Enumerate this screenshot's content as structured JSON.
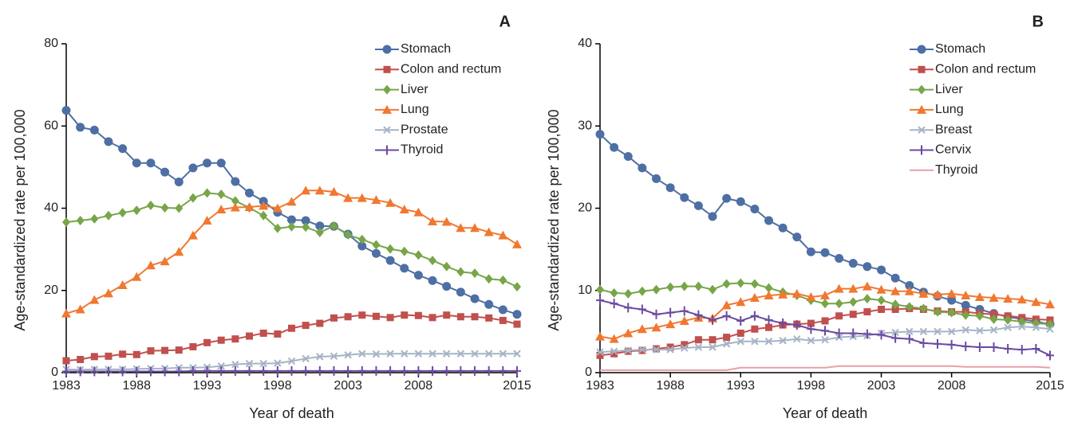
{
  "chart_data": [
    {
      "type": "line",
      "title": "A",
      "x_label": "Year of death",
      "y_label": "Age-standardized rate per 100,000",
      "x": [
        1983,
        1984,
        1985,
        1986,
        1987,
        1988,
        1989,
        1990,
        1991,
        1992,
        1993,
        1994,
        1995,
        1996,
        1997,
        1998,
        1999,
        2000,
        2001,
        2002,
        2003,
        2004,
        2005,
        2006,
        2007,
        2008,
        2009,
        2010,
        2011,
        2012,
        2013,
        2014,
        2015
      ],
      "xlim": [
        1983,
        2015
      ],
      "xticks": [
        1983,
        1988,
        1993,
        1998,
        2003,
        2008,
        2015
      ],
      "ylim": [
        0,
        80
      ],
      "yticks": [
        0,
        20,
        40,
        60,
        80
      ],
      "series": [
        {
          "name": "Stomach",
          "color": "#4e6fa3",
          "marker": "circle",
          "values": [
            63.8,
            59.7,
            59,
            56.2,
            54.5,
            51,
            51,
            48.8,
            46.4,
            49.8,
            51,
            51,
            46.5,
            43.7,
            41.7,
            39,
            37.2,
            37,
            35.7,
            35.6,
            33.7,
            30.8,
            29,
            27.3,
            25.4,
            23.7,
            22.4,
            21,
            19.6,
            18,
            16.6,
            15.3,
            14.2
          ]
        },
        {
          "name": "Colon and rectum",
          "color": "#c0504d",
          "marker": "square",
          "values": [
            2.9,
            3.2,
            3.9,
            4,
            4.5,
            4.4,
            5.3,
            5.4,
            5.5,
            6.3,
            7.3,
            7.9,
            8.2,
            8.9,
            9.6,
            9.4,
            10.8,
            11.5,
            12,
            13.3,
            13.6,
            14,
            13.7,
            13.4,
            14,
            13.9,
            13.4,
            14,
            13.6,
            13.6,
            13.3,
            12.7,
            11.8
          ]
        },
        {
          "name": "Liver",
          "color": "#77a548",
          "marker": "diamond",
          "values": [
            36.6,
            37,
            37.4,
            38.2,
            38.9,
            39.5,
            40.7,
            40.1,
            40,
            42.5,
            43.7,
            43.4,
            41.8,
            40.1,
            38.2,
            35.1,
            35.5,
            35.4,
            34.1,
            35.7,
            33.5,
            32.4,
            31.1,
            30.1,
            29.5,
            28.6,
            27.3,
            25.8,
            24.5,
            24.2,
            22.8,
            22.5,
            20.9
          ]
        },
        {
          "name": "Lung",
          "color": "#f07830",
          "marker": "triangle",
          "values": [
            14.4,
            15.4,
            17.7,
            19.3,
            21.3,
            23.3,
            26.1,
            27.1,
            29.4,
            33.4,
            37,
            39.7,
            40.2,
            40.3,
            40.6,
            40,
            41.6,
            44.3,
            44.3,
            44,
            42.5,
            42.5,
            42,
            41.3,
            39.7,
            39,
            36.8,
            36.7,
            35.2,
            35.2,
            34.2,
            33.4,
            31.2
          ]
        },
        {
          "name": "Prostate",
          "color": "#a5b4c6",
          "marker": "x",
          "values": [
            0.8,
            0.7,
            0.8,
            0.8,
            0.8,
            0.9,
            1,
            1,
            1.2,
            1.2,
            1.3,
            1.6,
            2,
            2.2,
            2.2,
            2.3,
            2.8,
            3.4,
            3.9,
            4,
            4.3,
            4.6,
            4.5,
            4.6,
            4.6,
            4.6,
            4.6,
            4.6,
            4.6,
            4.6,
            4.6,
            4.6,
            4.6
          ]
        },
        {
          "name": "Thyroid",
          "color": "#6b4aa0",
          "marker": "plus",
          "values": [
            0.3,
            0.3,
            0.3,
            0.3,
            0.3,
            0.3,
            0.3,
            0.3,
            0.3,
            0.4,
            0.4,
            0.4,
            0.4,
            0.4,
            0.4,
            0.4,
            0.4,
            0.4,
            0.4,
            0.4,
            0.4,
            0.4,
            0.4,
            0.4,
            0.4,
            0.4,
            0.4,
            0.4,
            0.4,
            0.4,
            0.4,
            0.4,
            0.4
          ]
        }
      ]
    },
    {
      "type": "line",
      "title": "B",
      "x_label": "Year of death",
      "y_label": "Age-standardized rate per 100,000",
      "x": [
        1983,
        1984,
        1985,
        1986,
        1987,
        1988,
        1989,
        1990,
        1991,
        1992,
        1993,
        1994,
        1995,
        1996,
        1997,
        1998,
        1999,
        2000,
        2001,
        2002,
        2003,
        2004,
        2005,
        2006,
        2007,
        2008,
        2009,
        2010,
        2011,
        2012,
        2013,
        2014,
        2015
      ],
      "xlim": [
        1983,
        2015
      ],
      "xticks": [
        1983,
        1988,
        1993,
        1998,
        2003,
        2008,
        2015
      ],
      "ylim": [
        0,
        40
      ],
      "yticks": [
        0,
        10,
        20,
        30,
        40
      ],
      "series": [
        {
          "name": "Stomach",
          "color": "#4e6fa3",
          "marker": "circle",
          "values": [
            29,
            27.4,
            26.3,
            24.9,
            23.6,
            22.5,
            21.3,
            20.3,
            19,
            21.2,
            20.8,
            19.9,
            18.5,
            17.6,
            16.5,
            14.7,
            14.6,
            13.9,
            13.3,
            12.9,
            12.5,
            11.5,
            10.6,
            9.8,
            9.3,
            8.8,
            8.2,
            7.7,
            7.2,
            6.8,
            6.5,
            6.2,
            5.9
          ]
        },
        {
          "name": "Colon and rectum",
          "color": "#c0504d",
          "marker": "square",
          "values": [
            2.1,
            2.3,
            2.6,
            2.7,
            2.9,
            3.1,
            3.4,
            4,
            4,
            4.3,
            4.8,
            5.3,
            5.5,
            5.8,
            5.9,
            6,
            6.3,
            6.9,
            7.1,
            7.4,
            7.7,
            7.7,
            7.8,
            7.7,
            7.5,
            7.4,
            7.4,
            7.2,
            7.1,
            6.9,
            6.7,
            6.5,
            6.4
          ]
        },
        {
          "name": "Liver",
          "color": "#77a548",
          "marker": "diamond",
          "values": [
            10.1,
            9.7,
            9.6,
            9.9,
            10.1,
            10.4,
            10.5,
            10.5,
            10.1,
            10.8,
            10.9,
            10.8,
            10.3,
            9.8,
            9.4,
            8.8,
            8.4,
            8.4,
            8.6,
            9,
            8.8,
            8.3,
            8,
            7.8,
            7.4,
            7.3,
            7,
            6.9,
            6.5,
            6.4,
            6.2,
            6,
            5.9
          ]
        },
        {
          "name": "Lung",
          "color": "#f07830",
          "marker": "triangle",
          "values": [
            4.4,
            4.1,
            4.8,
            5.3,
            5.5,
            5.9,
            6.3,
            6.7,
            6.6,
            8.2,
            8.6,
            9.1,
            9.4,
            9.5,
            9.6,
            9.2,
            9.4,
            10.2,
            10.2,
            10.5,
            10.1,
            9.9,
            9.9,
            9.6,
            9.5,
            9.6,
            9.4,
            9.2,
            9.1,
            9,
            8.9,
            8.6,
            8.3
          ]
        },
        {
          "name": "Breast",
          "color": "#a5b4c6",
          "marker": "x",
          "values": [
            2.5,
            2.6,
            2.7,
            2.8,
            2.8,
            2.8,
            3,
            3.1,
            3.1,
            3.5,
            3.8,
            3.8,
            3.8,
            3.9,
            4.1,
            3.9,
            4,
            4.3,
            4.4,
            4.5,
            4.8,
            4.9,
            5,
            5,
            5,
            5,
            5.2,
            5.1,
            5.2,
            5.5,
            5.6,
            5.5,
            5.3
          ]
        },
        {
          "name": "Cervix",
          "color": "#6b4aa0",
          "marker": "plus",
          "values": [
            8.8,
            8.4,
            7.9,
            7.7,
            7.1,
            7.3,
            7.5,
            7,
            6.4,
            6.9,
            6.3,
            6.9,
            6.4,
            6,
            5.8,
            5.3,
            5.1,
            4.8,
            4.8,
            4.7,
            4.6,
            4.2,
            4.1,
            3.6,
            3.5,
            3.4,
            3.2,
            3.1,
            3.1,
            2.9,
            2.8,
            2.9,
            2.1
          ]
        },
        {
          "name": "Thyroid",
          "color": "#e7a0a8",
          "marker": "none",
          "values": [
            0.3,
            0.3,
            0.3,
            0.3,
            0.3,
            0.3,
            0.3,
            0.3,
            0.3,
            0.3,
            0.6,
            0.6,
            0.6,
            0.6,
            0.6,
            0.6,
            0.6,
            0.8,
            0.8,
            0.8,
            0.8,
            0.8,
            0.8,
            0.8,
            0.8,
            0.8,
            0.7,
            0.7,
            0.7,
            0.7,
            0.7,
            0.7,
            0.6
          ]
        }
      ]
    }
  ]
}
